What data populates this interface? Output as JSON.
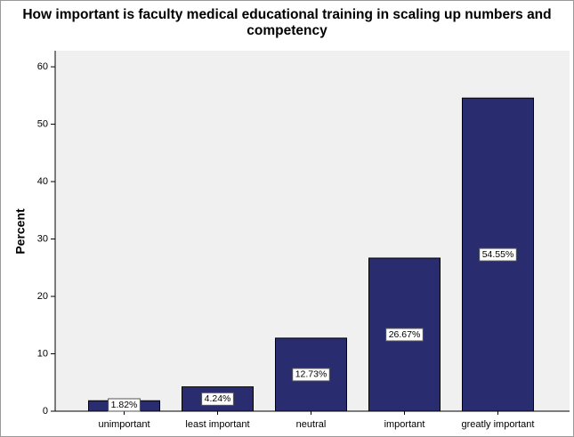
{
  "chart_data": {
    "type": "bar",
    "title": "How important is faculty medical educational training in scaling up numbers and competency",
    "y_label": "Percent",
    "categories": [
      "unimportant",
      "least important",
      "neutral",
      "important",
      "greatly important"
    ],
    "values": [
      1.82,
      4.24,
      12.73,
      26.67,
      54.55
    ],
    "value_labels": [
      "1.82%",
      "4.24%",
      "12.73%",
      "26.67%",
      "54.55%"
    ],
    "color": "#2a2c70",
    "ylim": [
      0,
      62.8
    ],
    "yticks": [
      0,
      10,
      20,
      30,
      40,
      50,
      60
    ],
    "grid": false
  }
}
